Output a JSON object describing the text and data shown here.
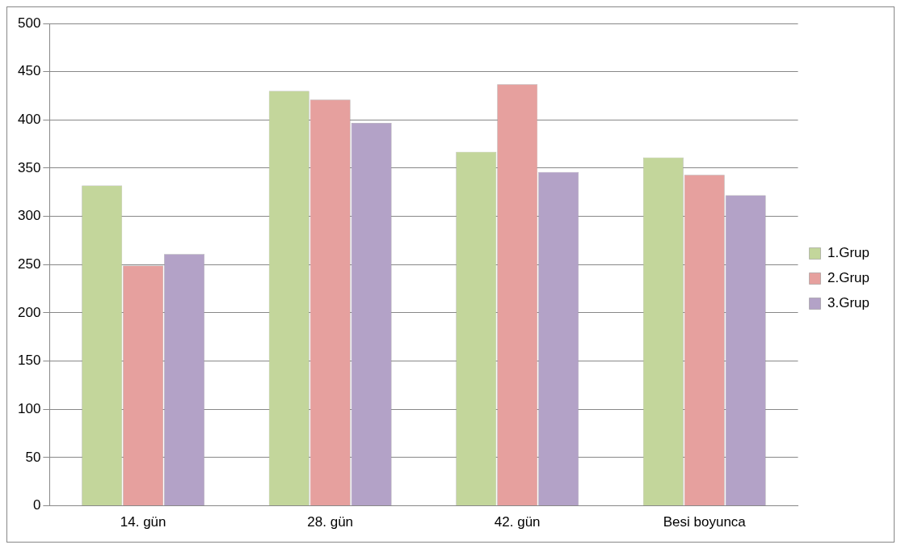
{
  "chart_data": {
    "type": "bar",
    "categories": [
      "14. gün",
      "28. gün",
      "42. gün",
      "Besi boyunca"
    ],
    "series": [
      {
        "name": "1.Grup",
        "color": "#c3d69b",
        "values": [
          332,
          430,
          367,
          361
        ]
      },
      {
        "name": "2.Grup",
        "color": "#e6a09e",
        "values": [
          249,
          421,
          437,
          343
        ]
      },
      {
        "name": "3.Grup",
        "color": "#b3a2c7",
        "values": [
          261,
          397,
          346,
          322
        ]
      }
    ],
    "ylim": [
      0,
      500
    ],
    "yticks": [
      0,
      50,
      100,
      150,
      200,
      250,
      300,
      350,
      400,
      450,
      500
    ],
    "grid": "y",
    "legend": "right"
  }
}
